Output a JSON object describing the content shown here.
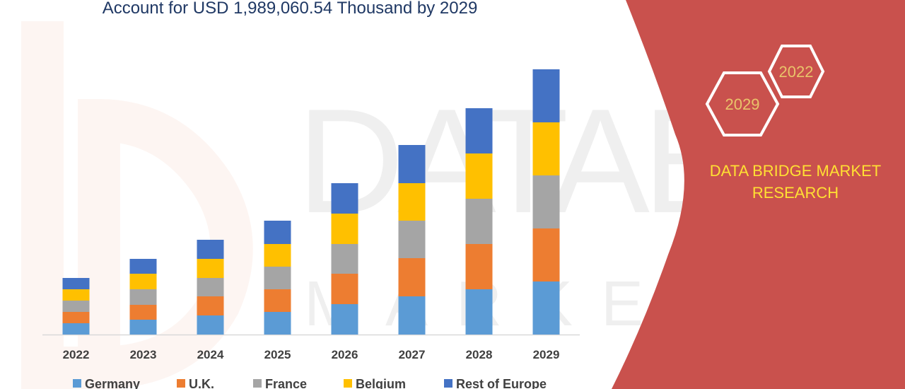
{
  "title": "Account for USD 1,989,060.54 Thousand by 2029",
  "brand": {
    "line1": "DATA BRIDGE MARKET",
    "line2": "RESEARCH",
    "hex_top": "2022",
    "hex_bottom": "2029"
  },
  "colors": {
    "panel": "#c9514d",
    "Germany": "#5b9bd5",
    "U.K.": "#ed7d31",
    "France": "#a5a5a5",
    "Belgium": "#ffc000",
    "Rest of Europe": "#4472c4"
  },
  "chart_data": {
    "type": "bar",
    "stacked": true,
    "categories": [
      "2022",
      "2023",
      "2024",
      "2025",
      "2026",
      "2027",
      "2028",
      "2029"
    ],
    "series": [
      {
        "name": "Germany",
        "values": [
          16,
          21,
          27,
          32,
          43,
          54,
          64,
          75
        ]
      },
      {
        "name": "U.K.",
        "values": [
          16,
          21,
          27,
          32,
          43,
          54,
          64,
          75
        ]
      },
      {
        "name": "France",
        "values": [
          16,
          22,
          26,
          32,
          42,
          53,
          64,
          75
        ]
      },
      {
        "name": "Belgium",
        "values": [
          16,
          22,
          27,
          32,
          43,
          53,
          64,
          75
        ]
      },
      {
        "name": "Rest of Europe",
        "values": [
          16,
          21,
          27,
          33,
          43,
          54,
          64,
          75
        ]
      }
    ],
    "ylim": [
      0,
      400
    ],
    "grid": false,
    "legend": "bottom"
  }
}
